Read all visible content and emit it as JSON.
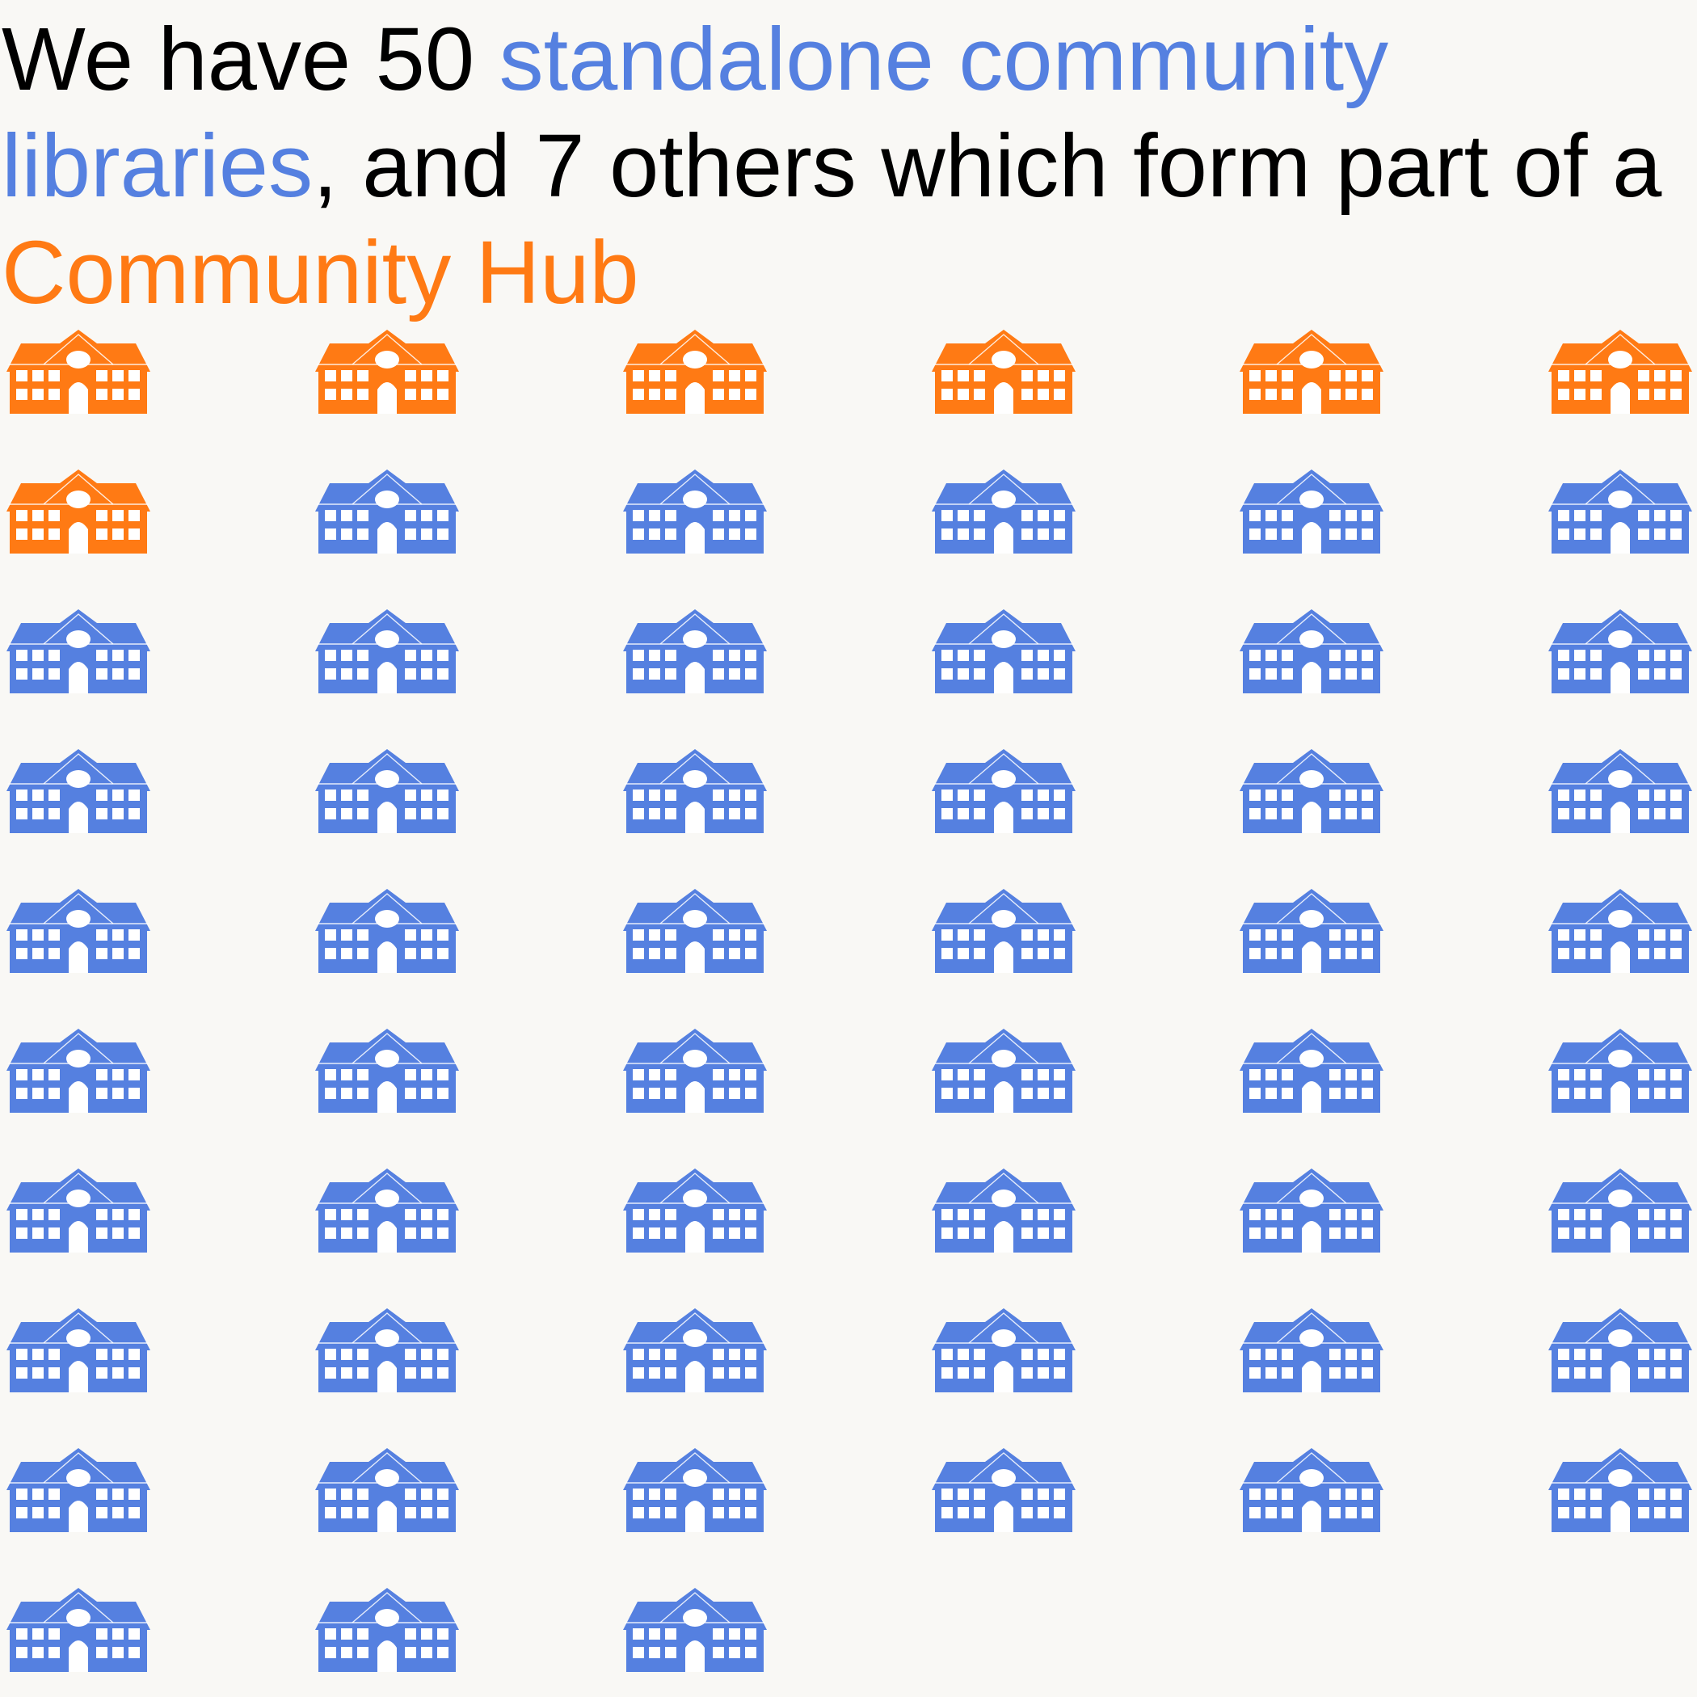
{
  "headline": {
    "part1": "We have 50 ",
    "highlight1": "standalone community libraries",
    "part2": ", and 7 others which form part of a ",
    "highlight2": "Community Hub",
    "highlight1_color": "#5580e0",
    "highlight2_color": "#ff7a14"
  },
  "chart_data": {
    "type": "pictogram",
    "icon": "building-icon",
    "columns": 6,
    "series": [
      {
        "name": "Community Hub",
        "count": 7,
        "color": "#ff7a14"
      },
      {
        "name": "standalone community libraries",
        "count": 50,
        "color": "#5580e0"
      }
    ],
    "total": 57
  }
}
